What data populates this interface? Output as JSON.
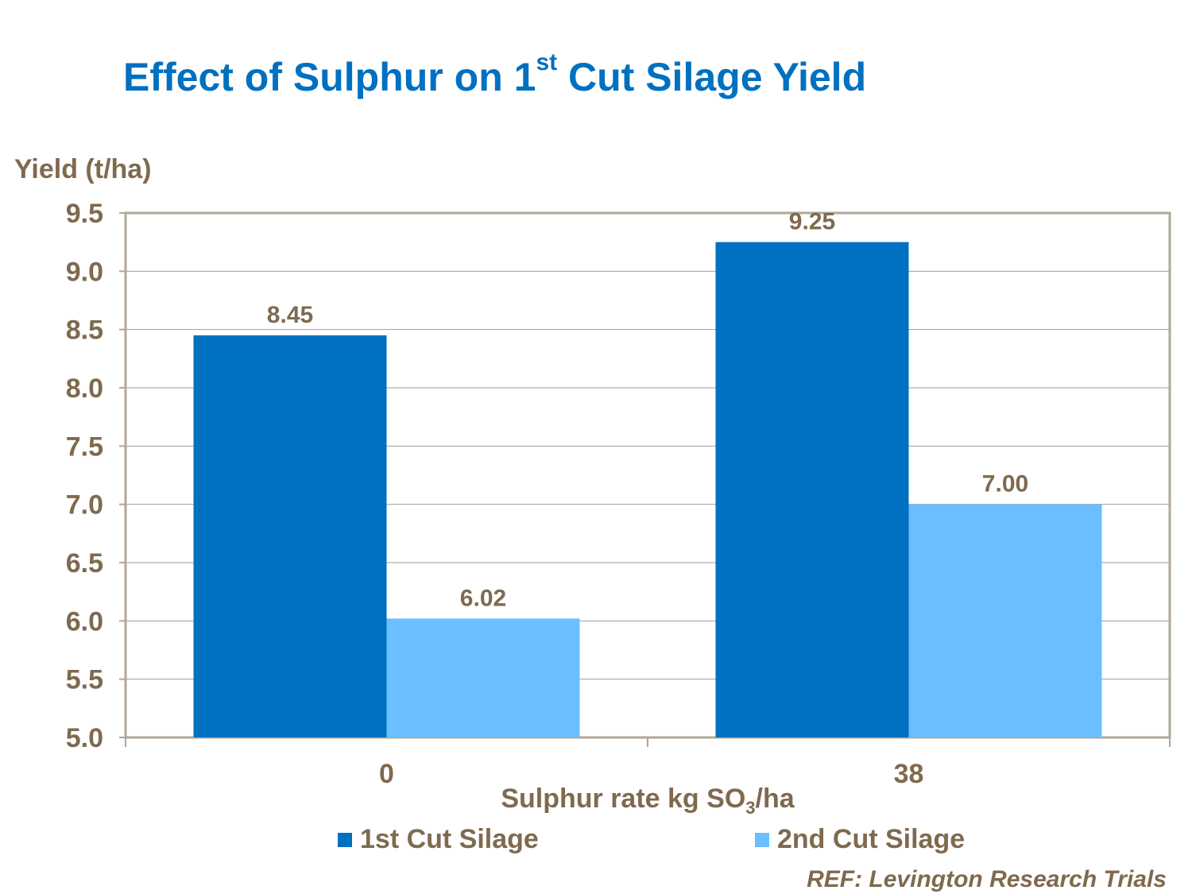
{
  "chart_data": {
    "type": "bar",
    "title_main": "Effect of Sulphur on 1",
    "title_sup": "st",
    "title_end": " Cut Silage Yield",
    "ylabel": "Yield (t/ha)",
    "xlabel_main": "Sulphur rate kg SO",
    "xlabel_sub": "3",
    "xlabel_end": "/ha",
    "categories": [
      "0",
      "38"
    ],
    "series": [
      {
        "name": "1st Cut Silage",
        "color": "#0070C0",
        "values": [
          8.45,
          9.25
        ],
        "labels": [
          "8.45",
          "9.25"
        ]
      },
      {
        "name": "2nd Cut Silage",
        "color": "#6BBEFF",
        "values": [
          6.02,
          7.0
        ],
        "labels": [
          "6.02",
          "7.00"
        ]
      }
    ],
    "ylim": [
      5.0,
      9.5
    ],
    "yticks": [
      "5.0",
      "5.5",
      "6.0",
      "6.5",
      "7.0",
      "7.5",
      "8.0",
      "8.5",
      "9.0",
      "9.5"
    ],
    "grid": true,
    "legend_position": "bottom",
    "reference": "REF: Levington Research Trials"
  }
}
